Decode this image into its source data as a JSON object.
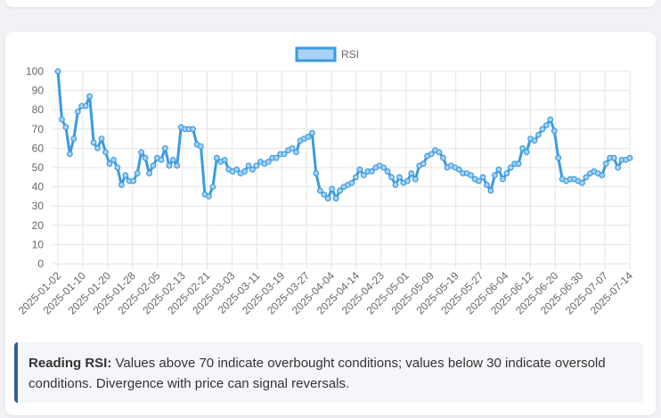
{
  "chart_data": {
    "type": "line",
    "title": "",
    "xlabel": "",
    "ylabel": "",
    "ylim": [
      0,
      100
    ],
    "yticks": [
      0,
      10,
      20,
      30,
      40,
      50,
      60,
      70,
      80,
      90,
      100
    ],
    "legend_position": "top-center",
    "grid": true,
    "color": "#3b9be0",
    "x_tick_labels": [
      "2025-01-02",
      "2025-01-10",
      "2025-01-20",
      "2025-01-28",
      "2025-02-05",
      "2025-02-13",
      "2025-02-21",
      "2025-03-03",
      "2025-03-11",
      "2025-03-19",
      "2025-03-27",
      "2025-04-04",
      "2025-04-14",
      "2025-04-23",
      "2025-05-01",
      "2025-05-09",
      "2025-05-19",
      "2025-05-27",
      "2025-06-04",
      "2025-06-12",
      "2025-06-20",
      "2025-06-30",
      "2025-07-07",
      "2025-07-14"
    ],
    "series": [
      {
        "name": "RSI",
        "values": [
          100,
          75,
          71,
          57,
          65,
          79,
          82,
          82,
          87,
          63,
          60,
          65,
          58,
          52,
          54,
          50,
          41,
          46,
          43,
          43,
          47,
          58,
          55,
          47,
          51,
          55,
          54,
          60,
          51,
          54,
          51,
          71,
          70,
          70,
          70,
          62,
          61,
          36,
          35,
          40,
          55,
          53,
          54,
          49,
          48,
          49,
          47,
          48,
          51,
          49,
          51,
          53,
          52,
          53,
          55,
          55,
          57,
          57,
          59,
          60,
          58,
          64,
          65,
          66,
          68,
          47,
          38,
          36,
          34,
          39,
          34,
          38,
          40,
          41,
          42,
          45,
          49,
          46,
          48,
          48,
          50,
          51,
          50,
          48,
          45,
          41,
          45,
          42,
          43,
          47,
          44,
          51,
          52,
          56,
          57,
          59,
          58,
          55,
          50,
          51,
          50,
          49,
          47,
          47,
          46,
          44,
          43,
          45,
          41,
          38,
          46,
          49,
          44,
          47,
          50,
          52,
          52,
          60,
          58,
          65,
          64,
          67,
          70,
          72,
          75,
          69,
          55,
          44,
          43,
          44,
          44,
          43,
          42,
          45,
          47,
          48,
          47,
          46,
          52,
          55,
          55,
          50,
          54,
          54,
          55
        ]
      }
    ]
  },
  "note": {
    "bold": "Reading RSI:",
    "text": " Values above 70 indicate overbought conditions; values below 30 indicate oversold conditions. Divergence with price can signal reversals."
  }
}
